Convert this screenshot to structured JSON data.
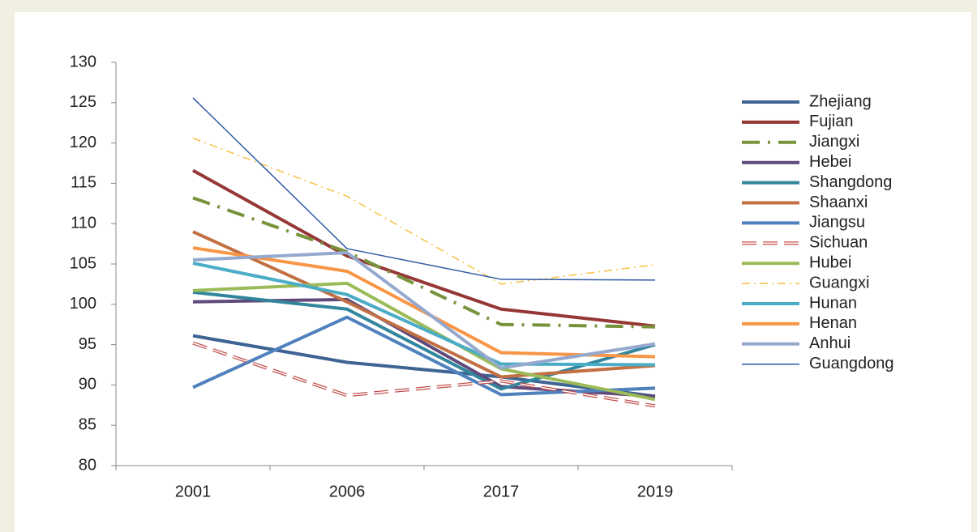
{
  "chart_data": {
    "type": "line",
    "categories": [
      "2001",
      "2006",
      "2017",
      "2019"
    ],
    "ylim": [
      80,
      130
    ],
    "yticks": [
      80,
      85,
      90,
      95,
      100,
      105,
      110,
      115,
      120,
      125,
      130
    ],
    "grid": false,
    "legend": "right",
    "series": [
      {
        "name": "Zhejiang",
        "color": "#3e6493",
        "dash": "solid",
        "line_weight": "thick",
        "values": [
          96.1,
          92.8,
          91.0,
          88.6
        ]
      },
      {
        "name": "Fujian",
        "color": "#953735",
        "dash": "solid",
        "line_weight": "thick",
        "values": [
          116.6,
          106.0,
          99.4,
          97.3
        ]
      },
      {
        "name": "Jiangxi",
        "color": "#77933c",
        "dash": "long-dash-dot",
        "line_weight": "thick",
        "values": [
          113.2,
          106.5,
          97.5,
          97.2
        ]
      },
      {
        "name": "Hebei",
        "color": "#604a7b",
        "dash": "solid",
        "line_weight": "thick",
        "values": [
          100.3,
          100.6,
          89.8,
          88.6
        ]
      },
      {
        "name": "Shangdong",
        "color": "#31859c",
        "dash": "solid",
        "line_weight": "thick",
        "values": [
          101.5,
          99.4,
          89.5,
          95.0
        ]
      },
      {
        "name": "Shaanxi",
        "color": "#c27043",
        "dash": "solid",
        "line_weight": "thick",
        "values": [
          109.0,
          100.3,
          91.0,
          92.4
        ]
      },
      {
        "name": "Jiangsu",
        "color": "#4f81bd",
        "dash": "solid",
        "line_weight": "thick",
        "values": [
          89.7,
          98.4,
          88.8,
          89.6
        ]
      },
      {
        "name": "Sichuan",
        "color": "#c0504d",
        "dash": "hollow-dashed",
        "line_weight": "thick",
        "values": [
          95.2,
          88.7,
          90.5,
          87.4
        ]
      },
      {
        "name": "Hubei",
        "color": "#9bbb59",
        "dash": "solid",
        "line_weight": "thick",
        "values": [
          101.7,
          102.6,
          92.0,
          88.2
        ]
      },
      {
        "name": "Guangxi",
        "color": "#f7c143",
        "dash": "dash-dot",
        "line_weight": "thin",
        "values": [
          120.6,
          113.4,
          102.5,
          104.9
        ]
      },
      {
        "name": "Hunan",
        "color": "#4bacc6",
        "dash": "solid",
        "line_weight": "thick",
        "values": [
          105.1,
          101.2,
          92.6,
          92.5
        ]
      },
      {
        "name": "Henan",
        "color": "#f79646",
        "dash": "solid",
        "line_weight": "thick",
        "values": [
          107.0,
          104.1,
          94.0,
          93.5
        ]
      },
      {
        "name": "Anhui",
        "color": "#95a9cf",
        "dash": "solid",
        "line_weight": "thick",
        "values": [
          105.5,
          106.4,
          92.1,
          95.1
        ]
      },
      {
        "name": "Guangdong",
        "color": "#2e59a6",
        "dash": "solid",
        "line_weight": "thin",
        "values": [
          125.6,
          106.9,
          103.1,
          103.0
        ]
      }
    ]
  }
}
